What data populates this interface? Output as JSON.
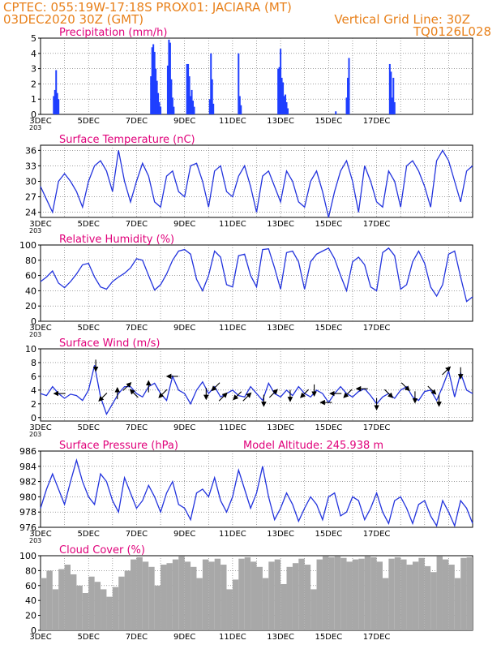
{
  "header": {
    "line1_left": "CPTEC:   055:19W-17:18S   PROX01: JACIARA (MT)",
    "line2_left": "03DEC2020 30Z (GMT)",
    "line2_right": "Vertical Grid Line: 30Z",
    "line3_right": "TQ0126L028"
  },
  "colors": {
    "header": "#e8801a",
    "title": "#e0007a",
    "line": "#2233dd",
    "bar": "#1f3fff",
    "cloud": "#a8a8a8",
    "arrow": "#000000",
    "grid": "#666666"
  },
  "x_labels": [
    "3DEC",
    "5DEC",
    "7DEC",
    "9DEC",
    "11DEC",
    "13DEC",
    "15DEC",
    "17DEC"
  ],
  "cut_label": "203",
  "chart_data": [
    {
      "type": "bar",
      "title": "Precipitation (mm/h)",
      "ylim": [
        0,
        5
      ],
      "yticks": [
        0,
        1,
        2,
        3,
        4,
        5
      ],
      "x": [
        0.55,
        0.6,
        0.65,
        0.7,
        0.75,
        4.6,
        4.65,
        4.7,
        4.75,
        4.8,
        4.85,
        4.9,
        4.95,
        5.0,
        5.3,
        5.35,
        5.4,
        5.45,
        5.5,
        5.55,
        6.1,
        6.15,
        6.2,
        6.25,
        6.3,
        6.35,
        6.4,
        7.05,
        7.1,
        7.15,
        7.2,
        8.25,
        8.3,
        8.35,
        9.9,
        9.95,
        10.0,
        10.05,
        10.1,
        10.15,
        10.2,
        10.25,
        10.3,
        12.3,
        12.75,
        12.8,
        12.85,
        14.55,
        14.6,
        14.65,
        14.7,
        14.75
      ],
      "values": [
        1.2,
        1.6,
        2.9,
        1.4,
        1.0,
        2.5,
        4.4,
        4.6,
        4.1,
        3.0,
        2.2,
        1.4,
        0.8,
        0.5,
        3.2,
        4.9,
        4.7,
        2.3,
        1.1,
        0.5,
        3.3,
        3.3,
        2.5,
        1.2,
        1.6,
        0.9,
        0.5,
        1.0,
        4.0,
        2.3,
        0.7,
        4.0,
        1.2,
        0.6,
        3.0,
        3.1,
        4.3,
        2.4,
        2.1,
        1.2,
        1.3,
        0.8,
        0.4,
        0.2,
        1.1,
        2.4,
        3.7,
        3.3,
        2.8,
        1.1,
        2.4,
        0.8
      ]
    },
    {
      "type": "line",
      "title": "Surface Temperature (nC)",
      "ylim": [
        23,
        37
      ],
      "yticks": [
        24,
        27,
        30,
        33,
        36
      ],
      "x": [
        0,
        0.25,
        0.5,
        0.75,
        1,
        1.25,
        1.5,
        1.75,
        2,
        2.25,
        2.5,
        2.75,
        3,
        3.25,
        3.5,
        3.75,
        4,
        4.25,
        4.5,
        4.75,
        5,
        5.25,
        5.5,
        5.75,
        6,
        6.25,
        6.5,
        6.75,
        7,
        7.25,
        7.5,
        7.75,
        8,
        8.25,
        8.5,
        8.75,
        9,
        9.25,
        9.5,
        9.75,
        10,
        10.25,
        10.5,
        10.75,
        11,
        11.25,
        11.5,
        11.75,
        12,
        12.25,
        12.5,
        12.75,
        13,
        13.25,
        13.5,
        13.75,
        14,
        14.25,
        14.5,
        14.75,
        15,
        15.25,
        15.5,
        15.75,
        16,
        16.25,
        16.5,
        16.75,
        17,
        17.25,
        17.5,
        17.75,
        18
      ],
      "values": [
        29,
        26.5,
        24,
        30,
        31.5,
        30,
        28,
        25,
        30,
        33,
        34,
        32,
        28,
        36,
        30,
        26,
        30,
        33.5,
        31,
        26,
        25,
        31,
        32,
        28,
        27,
        33,
        33.5,
        30,
        25,
        32,
        33,
        28,
        27,
        31,
        33,
        29,
        24,
        31,
        32,
        29,
        26,
        32,
        30,
        26,
        25,
        30,
        32,
        28,
        23,
        28,
        32,
        34,
        30,
        24,
        33,
        30,
        26,
        25,
        32,
        30,
        25,
        33,
        34,
        32,
        29,
        25,
        34,
        36,
        34,
        30,
        26,
        32,
        33
      ]
    },
    {
      "type": "line",
      "title": "Relative Humidity (%)",
      "ylim": [
        0,
        100
      ],
      "yticks": [
        0,
        20,
        40,
        60,
        80,
        100
      ],
      "x": [
        0,
        0.25,
        0.5,
        0.75,
        1,
        1.25,
        1.5,
        1.75,
        2,
        2.25,
        2.5,
        2.75,
        3,
        3.25,
        3.5,
        3.75,
        4,
        4.25,
        4.5,
        4.75,
        5,
        5.25,
        5.5,
        5.75,
        6,
        6.25,
        6.5,
        6.75,
        7,
        7.25,
        7.5,
        7.75,
        8,
        8.25,
        8.5,
        8.75,
        9,
        9.25,
        9.5,
        9.75,
        10,
        10.25,
        10.5,
        10.75,
        11,
        11.25,
        11.5,
        11.75,
        12,
        12.25,
        12.5,
        12.75,
        13,
        13.25,
        13.5,
        13.75,
        14,
        14.25,
        14.5,
        14.75,
        15,
        15.25,
        15.5,
        15.75,
        16,
        16.25,
        16.5,
        16.75,
        17,
        17.25,
        17.5,
        17.75,
        18
      ],
      "values": [
        52,
        58,
        66,
        50,
        44,
        52,
        62,
        74,
        76,
        58,
        45,
        42,
        52,
        58,
        63,
        70,
        82,
        80,
        60,
        41,
        48,
        62,
        80,
        92,
        94,
        88,
        55,
        40,
        60,
        92,
        84,
        48,
        45,
        86,
        88,
        60,
        45,
        94,
        95,
        70,
        42,
        90,
        92,
        78,
        42,
        78,
        88,
        92,
        96,
        82,
        60,
        40,
        78,
        84,
        74,
        45,
        40,
        90,
        96,
        86,
        42,
        48,
        78,
        92,
        76,
        45,
        33,
        48,
        88,
        92,
        58,
        26,
        32
      ]
    },
    {
      "type": "line",
      "title": "Surface Wind (m/s)",
      "ylim": [
        -0.5,
        10
      ],
      "yticks": [
        0,
        2,
        4,
        6,
        8,
        10
      ],
      "x": [
        0,
        0.25,
        0.5,
        0.75,
        1,
        1.25,
        1.5,
        1.75,
        2,
        2.25,
        2.5,
        2.75,
        3,
        3.25,
        3.5,
        3.75,
        4,
        4.25,
        4.5,
        4.75,
        5,
        5.25,
        5.5,
        5.75,
        6,
        6.25,
        6.5,
        6.75,
        7,
        7.25,
        7.5,
        7.75,
        8,
        8.25,
        8.5,
        8.75,
        9,
        9.25,
        9.5,
        9.75,
        10,
        10.25,
        10.5,
        10.75,
        11,
        11.25,
        11.5,
        11.75,
        12,
        12.25,
        12.5,
        12.75,
        13,
        13.25,
        13.5,
        13.75,
        14,
        14.25,
        14.5,
        14.75,
        15,
        15.25,
        15.5,
        15.75,
        16,
        16.25,
        16.5,
        16.75,
        17,
        17.25,
        17.5,
        17.75,
        18
      ],
      "values": [
        3.5,
        3.2,
        4.5,
        3.5,
        2.8,
        3.4,
        3.2,
        2.5,
        4,
        7.6,
        3,
        0.5,
        2,
        3.5,
        4.5,
        4.5,
        3.5,
        3,
        4.5,
        5,
        3.5,
        2.5,
        6,
        4,
        3.5,
        2,
        4,
        5.2,
        3.5,
        4.5,
        3,
        3.5,
        4,
        3.2,
        3,
        4.5,
        3.5,
        2.5,
        5,
        3.5,
        3,
        4,
        3.2,
        4.5,
        3.5,
        3,
        4,
        3.5,
        2.2,
        3.5,
        4.5,
        3.5,
        3,
        3.8,
        4.2,
        3.2,
        2,
        3,
        3.5,
        2.8,
        4,
        4.5,
        3,
        2.5,
        3.8,
        4,
        2.5,
        4.5,
        6.8,
        3,
        6.5,
        4,
        3.5
      ]
    },
    {
      "type": "line",
      "title": "Surface Pressure (hPa)",
      "annotation": "Model Altitude: 245.938  m",
      "ylim": [
        976,
        986
      ],
      "yticks": [
        976,
        978,
        980,
        982,
        984,
        986
      ],
      "x": [
        0,
        0.25,
        0.5,
        0.75,
        1,
        1.25,
        1.5,
        1.75,
        2,
        2.25,
        2.5,
        2.75,
        3,
        3.25,
        3.5,
        3.75,
        4,
        4.25,
        4.5,
        4.75,
        5,
        5.25,
        5.5,
        5.75,
        6,
        6.25,
        6.5,
        6.75,
        7,
        7.25,
        7.5,
        7.75,
        8,
        8.25,
        8.5,
        8.75,
        9,
        9.25,
        9.5,
        9.75,
        10,
        10.25,
        10.5,
        10.75,
        11,
        11.25,
        11.5,
        11.75,
        12,
        12.25,
        12.5,
        12.75,
        13,
        13.25,
        13.5,
        13.75,
        14,
        14.25,
        14.5,
        14.75,
        15,
        15.25,
        15.5,
        15.75,
        16,
        16.25,
        16.5,
        16.75,
        17,
        17.25,
        17.5,
        17.75,
        18
      ],
      "values": [
        978.5,
        981,
        983,
        981,
        979,
        982,
        984.8,
        982,
        980,
        979,
        983,
        982,
        979.5,
        978,
        982.5,
        980.5,
        978.5,
        979.5,
        981.5,
        980,
        978,
        980.5,
        982,
        979,
        978.5,
        977,
        980.5,
        981,
        980,
        982.5,
        979.5,
        978,
        980,
        983.5,
        981,
        978.5,
        980.5,
        984,
        980,
        977,
        978.5,
        980.5,
        979,
        976.8,
        978.5,
        980,
        979,
        977,
        980,
        980.5,
        977.5,
        978,
        980,
        979.5,
        977,
        978.5,
        980.5,
        978,
        976.5,
        979.5,
        980,
        978.5,
        976.5,
        979,
        979.5,
        977.5,
        976.2,
        979.5,
        978,
        976.2,
        979.5,
        978.5,
        976.5
      ]
    },
    {
      "type": "bar",
      "title": "Cloud Cover (%)",
      "ylim": [
        0,
        100
      ],
      "yticks": [
        0,
        20,
        40,
        60,
        80,
        100
      ],
      "x": [
        0,
        0.25,
        0.5,
        0.75,
        1,
        1.25,
        1.5,
        1.75,
        2,
        2.25,
        2.5,
        2.75,
        3,
        3.25,
        3.5,
        3.75,
        4,
        4.25,
        4.5,
        4.75,
        5,
        5.25,
        5.5,
        5.75,
        6,
        6.25,
        6.5,
        6.75,
        7,
        7.25,
        7.5,
        7.75,
        8,
        8.25,
        8.5,
        8.75,
        9,
        9.25,
        9.5,
        9.75,
        10,
        10.25,
        10.5,
        10.75,
        11,
        11.25,
        11.5,
        11.75,
        12,
        12.25,
        12.5,
        12.75,
        13,
        13.25,
        13.5,
        13.75,
        14,
        14.25,
        14.5,
        14.75,
        15,
        15.25,
        15.5,
        15.75,
        16,
        16.25,
        16.5,
        16.75,
        17,
        17.25,
        17.5,
        17.75
      ],
      "values": [
        70,
        80,
        55,
        82,
        88,
        75,
        60,
        50,
        72,
        65,
        55,
        45,
        58,
        72,
        80,
        95,
        98,
        92,
        85,
        60,
        88,
        90,
        95,
        99,
        92,
        85,
        70,
        95,
        92,
        96,
        88,
        55,
        68,
        96,
        98,
        92,
        85,
        70,
        92,
        95,
        62,
        85,
        90,
        96,
        88,
        55,
        95,
        99,
        98,
        99,
        97,
        92,
        95,
        96,
        99,
        98,
        92,
        70,
        96,
        98,
        95,
        88,
        92,
        97,
        86,
        78,
        99,
        95,
        88,
        70,
        97,
        98
      ]
    }
  ],
  "wind_vectors": [
    {
      "t": 0.8,
      "dir": "W"
    },
    {
      "t": 2.3,
      "dir": "S"
    },
    {
      "t": 2.6,
      "dir": "SW"
    },
    {
      "t": 3.2,
      "dir": "N"
    },
    {
      "t": 3.6,
      "dir": "NE"
    },
    {
      "t": 3.9,
      "dir": "NW"
    },
    {
      "t": 4.5,
      "dir": "N"
    },
    {
      "t": 5.1,
      "dir": "SW"
    },
    {
      "t": 5.5,
      "dir": "W"
    },
    {
      "t": 6.9,
      "dir": "S"
    },
    {
      "t": 7.3,
      "dir": "SW"
    },
    {
      "t": 7.6,
      "dir": "NE"
    },
    {
      "t": 8.2,
      "dir": "SW"
    },
    {
      "t": 8.6,
      "dir": "NE"
    },
    {
      "t": 9.3,
      "dir": "S"
    },
    {
      "t": 9.7,
      "dir": "NE"
    },
    {
      "t": 10.4,
      "dir": "S"
    },
    {
      "t": 11.0,
      "dir": "SW"
    },
    {
      "t": 11.4,
      "dir": "S"
    },
    {
      "t": 11.9,
      "dir": "W"
    },
    {
      "t": 12.3,
      "dir": "W"
    },
    {
      "t": 12.8,
      "dir": "SW"
    },
    {
      "t": 13.4,
      "dir": "W"
    },
    {
      "t": 14.0,
      "dir": "S"
    },
    {
      "t": 14.5,
      "dir": "SE"
    },
    {
      "t": 15.2,
      "dir": "SE"
    },
    {
      "t": 15.6,
      "dir": "S"
    },
    {
      "t": 16.3,
      "dir": "SE"
    },
    {
      "t": 16.6,
      "dir": "S"
    },
    {
      "t": 16.9,
      "dir": "NE"
    },
    {
      "t": 17.5,
      "dir": "S"
    }
  ]
}
